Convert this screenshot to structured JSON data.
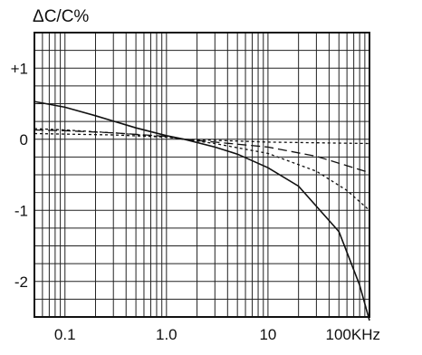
{
  "chart_data": {
    "type": "line",
    "title": "",
    "ylabel": "ΔC/C%",
    "xlabel": "",
    "x_scale": "log",
    "xlim": [
      0.05,
      100
    ],
    "ylim": [
      -2.5,
      1.5
    ],
    "grid": true,
    "x_tick_labels": [
      {
        "value": 0.1,
        "label": "0.1"
      },
      {
        "value": 1,
        "label": "1.0"
      },
      {
        "value": 10,
        "label": "10"
      },
      {
        "value": 100,
        "label": "100KHz"
      }
    ],
    "y_tick_labels": [
      {
        "value": 1,
        "label": "+1"
      },
      {
        "value": 0,
        "label": "0"
      },
      {
        "value": -1,
        "label": "-1"
      },
      {
        "value": -2,
        "label": "-2"
      }
    ],
    "series": [
      {
        "style": "solid",
        "points": [
          [
            0.05,
            0.53
          ],
          [
            0.1,
            0.45
          ],
          [
            0.2,
            0.33
          ],
          [
            0.5,
            0.16
          ],
          [
            1.0,
            0.05
          ],
          [
            1.5,
            0.0
          ],
          [
            3,
            -0.11
          ],
          [
            5,
            -0.21
          ],
          [
            10,
            -0.4
          ],
          [
            20,
            -0.66
          ],
          [
            50,
            -1.3
          ],
          [
            80,
            -2.05
          ],
          [
            100,
            -2.55
          ]
        ]
      },
      {
        "style": "dashed",
        "points": [
          [
            0.05,
            0.13
          ],
          [
            0.1,
            0.12
          ],
          [
            0.3,
            0.09
          ],
          [
            1.0,
            0.04
          ],
          [
            1.5,
            0.0
          ],
          [
            3,
            -0.04
          ],
          [
            10,
            -0.11
          ],
          [
            30,
            -0.24
          ],
          [
            100,
            -0.47
          ]
        ]
      },
      {
        "style": "dotted",
        "points": [
          [
            0.05,
            0.15
          ],
          [
            0.1,
            0.13
          ],
          [
            0.3,
            0.09
          ],
          [
            1.0,
            0.03
          ],
          [
            1.5,
            0.0
          ],
          [
            3,
            -0.06
          ],
          [
            10,
            -0.2
          ],
          [
            30,
            -0.45
          ],
          [
            60,
            -0.72
          ],
          [
            100,
            -1.0
          ]
        ]
      },
      {
        "style": "dotted",
        "points": [
          [
            0.05,
            0.08
          ],
          [
            0.3,
            0.06
          ],
          [
            1.0,
            0.03
          ],
          [
            1.5,
            0.0
          ],
          [
            10,
            -0.04
          ],
          [
            100,
            -0.06
          ]
        ]
      }
    ]
  }
}
